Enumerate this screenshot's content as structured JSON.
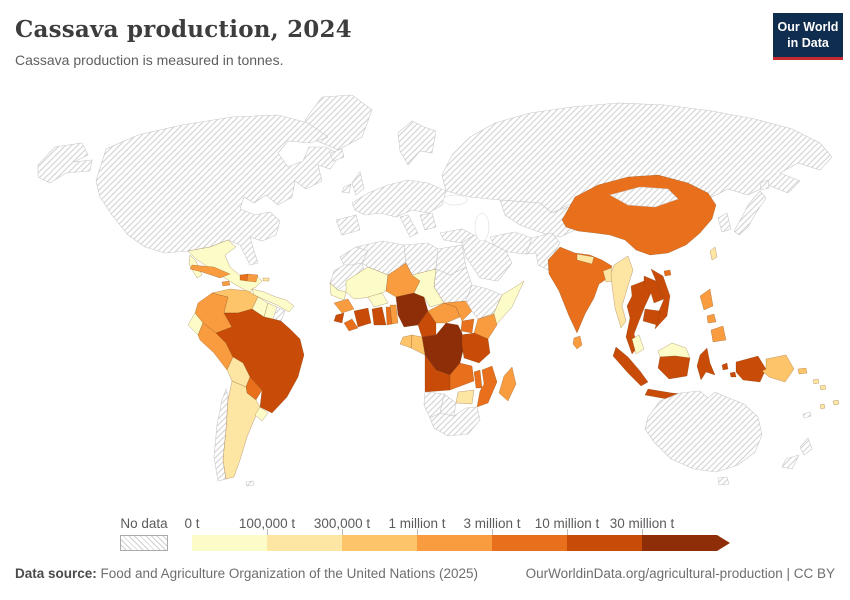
{
  "header": {
    "title": "Cassava production, 2024",
    "subtitle": "Cassava production is measured in tonnes.",
    "logo_line1": "Our World",
    "logo_line2": "in Data",
    "logo_bg": "#0f2d4e",
    "logo_accent": "#c32a31"
  },
  "legend": {
    "no_data_label": "No data",
    "labels": [
      "0 t",
      "100,000 t",
      "300,000 t",
      "1 million t",
      "3 million t",
      "10 million t",
      "30 million t"
    ],
    "colors": [
      "#fcfcc8",
      "#fde5a4",
      "#fdc469",
      "#f99b3f",
      "#e8701c",
      "#c84b07",
      "#8e2e08"
    ]
  },
  "footer": {
    "source_label": "Data source:",
    "source_text": " Food and Agriculture Organization of the United Nations (2025)",
    "link_text": "OurWorldinData.org/agricultural-production | CC BY"
  },
  "chart_data": {
    "type": "heatmap",
    "subtype": "world-choropleth",
    "title": "Cassava production, 2024",
    "unit": "tonnes",
    "bin_labels": [
      "0 t – 100,000 t",
      "100,000 t – 300,000 t",
      "300,000 t – 1 million t",
      "1 – 3 million t",
      "3 – 10 million t",
      "10 – 30 million t",
      "30+ million t"
    ],
    "bin_colors": [
      "#fcfcc8",
      "#fde5a4",
      "#fdc469",
      "#f99b3f",
      "#e8701c",
      "#c84b07",
      "#8e2e08"
    ],
    "no_data_style": "diagonal-hatch",
    "countries": {
      "greenland": "no_data",
      "north_america": "no_data",
      "mexico": 0,
      "central_america": 0,
      "cuba": 3,
      "jamaica": 3,
      "haiti": 4,
      "dominican_republic": 3,
      "puerto_rico": 1,
      "colombia": 3,
      "venezuela": 2,
      "guyana": 0,
      "suriname": 0,
      "french_guiana": "no_data",
      "ecuador": 0,
      "peru": 3,
      "brazil": 5,
      "bolivia": 1,
      "paraguay": 4,
      "argentina": 1,
      "uruguay": 0,
      "chile": "no_data",
      "falkland_islands": "no_data",
      "morocco": "no_data",
      "mauritania": "no_data",
      "algeria": "no_data",
      "libya": "no_data",
      "egypt": "no_data",
      "sudan": "no_data",
      "senegal": 0,
      "guinea": 3,
      "sierra_leone": 5,
      "liberia": 4,
      "mali": 0,
      "burkina_faso": 0,
      "cote_divoire": 5,
      "ghana": 5,
      "togo": 4,
      "benin": 3,
      "niger": 3,
      "nigeria": 6,
      "chad": 0,
      "cameroon": 5,
      "central_african_republic": 3,
      "south_sudan": 3,
      "ethiopia": "no_data",
      "somalia": 0,
      "kenya": 3,
      "uganda": 4,
      "rwanda": 3,
      "burundi": 3,
      "dr_congo": 6,
      "congo": 2,
      "gabon": 2,
      "tanzania": 5,
      "angola": 5,
      "zambia": 4,
      "malawi": 4,
      "mozambique": 4,
      "zimbabwe": 1,
      "botswana": "no_data",
      "namibia": "no_data",
      "south_africa": "no_data",
      "madagascar": 3,
      "iceland": "no_data",
      "united_kingdom": "no_data",
      "ireland": "no_data",
      "scandinavia": "no_data",
      "europe": "no_data",
      "iberia": "no_data",
      "italy": "no_data",
      "balkans": "no_data",
      "turkey": "no_data",
      "russia": "no_data",
      "central_asia": "no_data",
      "arabia": "no_data",
      "iran": "no_data",
      "afghanistan_pakistan": "no_data",
      "mongolia": "no_data",
      "korea": "no_data",
      "japan": "no_data",
      "china": 4,
      "hainan": 4,
      "taiwan": 1,
      "india": 4,
      "nepal": 1,
      "bangladesh": 1,
      "myanmar": 1,
      "thailand": 5,
      "laos": 5,
      "vietnam": 5,
      "cambodia": 5,
      "malaysia": 0,
      "sri_lanka": 3,
      "philippines": 3,
      "indonesia": 5,
      "papua_new_guinea": 2,
      "solomon_islands": 1,
      "vanuatu": 1,
      "fiji": 1,
      "new_caledonia": "no_data",
      "australia": "no_data",
      "tasmania": "no_data",
      "new_zealand": "no_data"
    }
  }
}
